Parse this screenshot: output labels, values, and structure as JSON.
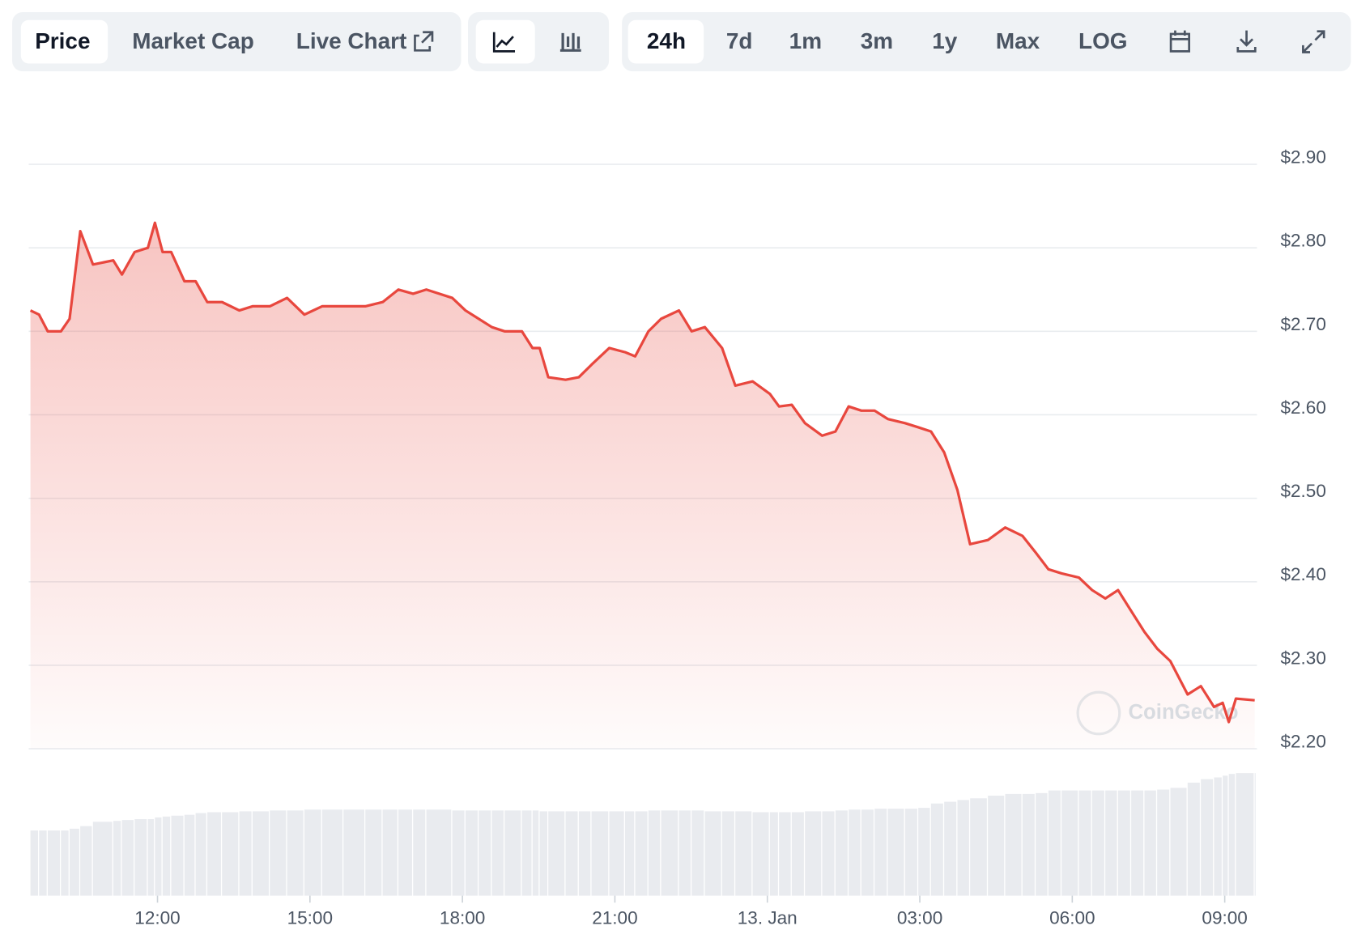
{
  "toolbar": {
    "tabs": [
      "Price",
      "Market Cap",
      "Live Chart"
    ],
    "ranges": [
      "24h",
      "7d",
      "1m",
      "3m",
      "1y",
      "Max",
      "LOG"
    ]
  },
  "chart_data": {
    "type": "line",
    "watermark": "CoinGecko",
    "color": "#e8473e",
    "grid": true,
    "x": [
      9.5,
      9.67,
      9.84,
      10.1,
      10.27,
      10.48,
      10.73,
      11.13,
      11.3,
      11.55,
      11.81,
      11.95,
      12.1,
      12.27,
      12.53,
      12.75,
      12.98,
      13.27,
      13.61,
      13.87,
      14.21,
      14.55,
      14.89,
      15.24,
      15.66,
      16.09,
      16.43,
      16.74,
      17.03,
      17.29,
      17.8,
      18.06,
      18.32,
      18.58,
      18.83,
      19.17,
      19.38,
      19.52,
      19.69,
      20.03,
      20.29,
      20.54,
      20.89,
      21.2,
      21.4,
      21.66,
      21.91,
      22.26,
      22.51,
      22.77,
      23.11,
      23.37,
      23.71,
      24.05,
      24.23,
      24.48,
      24.74,
      25.08,
      25.34,
      25.6,
      25.85,
      26.11,
      26.37,
      26.71,
      26.97,
      27.22,
      27.48,
      27.74,
      27.99,
      28.34,
      28.68,
      29.02,
      29.28,
      29.53,
      29.79,
      30.13,
      30.39,
      30.65,
      30.9,
      31.16,
      31.42,
      31.67,
      31.93,
      32.27,
      32.53,
      32.79,
      32.96,
      33.08,
      33.22,
      33.59
    ],
    "values": [
      2.725,
      2.72,
      2.7,
      2.7,
      2.715,
      2.82,
      2.78,
      2.785,
      2.768,
      2.795,
      2.8,
      2.83,
      2.795,
      2.795,
      2.76,
      2.76,
      2.735,
      2.735,
      2.725,
      2.73,
      2.73,
      2.74,
      2.72,
      2.73,
      2.73,
      2.73,
      2.735,
      2.75,
      2.745,
      2.75,
      2.74,
      2.725,
      2.715,
      2.705,
      2.7,
      2.7,
      2.68,
      2.68,
      2.645,
      2.642,
      2.645,
      2.66,
      2.68,
      2.675,
      2.67,
      2.7,
      2.715,
      2.725,
      2.7,
      2.705,
      2.68,
      2.635,
      2.64,
      2.625,
      2.61,
      2.612,
      2.59,
      2.575,
      2.58,
      2.61,
      2.605,
      2.605,
      2.595,
      2.59,
      2.585,
      2.58,
      2.555,
      2.51,
      2.445,
      2.45,
      2.465,
      2.455,
      2.435,
      2.415,
      2.41,
      2.405,
      2.39,
      2.38,
      2.39,
      2.365,
      2.34,
      2.32,
      2.305,
      2.265,
      2.275,
      2.25,
      2.255,
      2.232,
      2.26,
      2.258
    ],
    "volume": [
      75,
      75,
      75,
      75,
      77,
      80,
      85,
      86,
      87,
      88,
      88,
      90,
      91,
      92,
      93,
      95,
      96,
      96,
      97,
      97,
      98,
      98,
      99,
      99,
      99,
      99,
      99,
      99,
      99,
      99,
      98,
      98,
      98,
      98,
      98,
      98,
      98,
      97,
      97,
      97,
      97,
      97,
      97,
      97,
      97,
      98,
      98,
      98,
      98,
      97,
      97,
      97,
      96,
      96,
      96,
      96,
      97,
      97,
      98,
      99,
      99,
      100,
      100,
      100,
      101,
      106,
      108,
      110,
      112,
      115,
      117,
      117,
      118,
      121,
      121,
      121,
      121,
      121,
      121,
      121,
      121,
      122,
      124,
      130,
      134,
      136,
      138,
      140,
      141,
      141
    ],
    "volume_lim": [
      0,
      180
    ],
    "xlim": [
      9.5,
      33.6
    ],
    "xticks": [
      {
        "value": 12,
        "label": "12:00"
      },
      {
        "value": 15,
        "label": "15:00"
      },
      {
        "value": 18,
        "label": "18:00"
      },
      {
        "value": 21,
        "label": "21:00"
      },
      {
        "value": 24,
        "label": "13. Jan"
      },
      {
        "value": 27,
        "label": "03:00"
      },
      {
        "value": 30,
        "label": "06:00"
      },
      {
        "value": 33,
        "label": "09:00"
      }
    ],
    "ylim": [
      2.2,
      2.9
    ],
    "yticks": [
      {
        "value": 2.2,
        "label": "$2.20"
      },
      {
        "value": 2.3,
        "label": "$2.30"
      },
      {
        "value": 2.4,
        "label": "$2.40"
      },
      {
        "value": 2.5,
        "label": "$2.50"
      },
      {
        "value": 2.6,
        "label": "$2.60"
      },
      {
        "value": 2.7,
        "label": "$2.70"
      },
      {
        "value": 2.8,
        "label": "$2.80"
      },
      {
        "value": 2.9,
        "label": "$2.90"
      }
    ]
  }
}
